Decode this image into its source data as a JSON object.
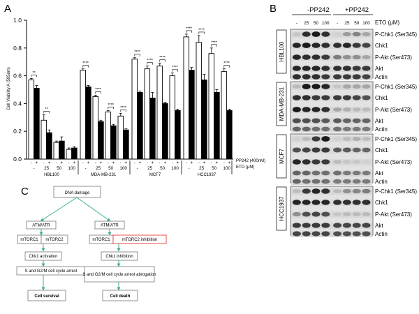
{
  "panel_a": {
    "letter": "A",
    "chart_data": {
      "type": "bar",
      "ylabel": "Cell Viability A (595nm)",
      "ylim": [
        0,
        1.0
      ],
      "yticks": [
        "0.0",
        "0.2",
        "0.4",
        "0.6",
        "0.8",
        "1.0"
      ],
      "groups": [
        {
          "name": "HBL100",
          "eto": [
            "",
            "25",
            "50",
            "100"
          ],
          "minus_pp": [
            0.57,
            0.28,
            0.12,
            0.07
          ],
          "plus_pp": [
            0.51,
            0.19,
            0.13,
            0.08
          ],
          "err_minus": [
            0.01,
            0.04,
            0.01,
            0.01
          ],
          "err_plus": [
            0.02,
            0.02,
            0.03,
            0.01
          ],
          "sig": [
            "**",
            "**",
            "",
            ""
          ]
        },
        {
          "name": "MDA-MB-231",
          "eto": [
            "",
            "25",
            "50",
            "100"
          ],
          "minus_pp": [
            0.64,
            0.45,
            0.34,
            0.31
          ],
          "plus_pp": [
            0.52,
            0.27,
            0.24,
            0.21
          ],
          "err_minus": [
            0.01,
            0.01,
            0.01,
            0.02
          ],
          "err_plus": [
            0.01,
            0.01,
            0.01,
            0.01
          ],
          "sig": [
            "****",
            "****",
            "****",
            "****"
          ]
        },
        {
          "name": "MCF7",
          "eto": [
            "",
            "25",
            "50",
            "100"
          ],
          "minus_pp": [
            0.72,
            0.65,
            0.67,
            0.6
          ],
          "plus_pp": [
            0.48,
            0.44,
            0.4,
            0.35
          ],
          "err_minus": [
            0.01,
            0.02,
            0.02,
            0.02
          ],
          "err_plus": [
            0.01,
            0.04,
            0.01,
            0.01
          ],
          "sig": [
            "****",
            "****",
            "****",
            "****"
          ]
        },
        {
          "name": "HCC1937",
          "eto": [
            "",
            "25",
            "50",
            "100"
          ],
          "minus_pp": [
            0.88,
            0.84,
            0.76,
            0.63
          ],
          "plus_pp": [
            0.64,
            0.57,
            0.48,
            0.35
          ],
          "err_minus": [
            0.02,
            0.05,
            0.04,
            0.02
          ],
          "err_plus": [
            0.02,
            0.04,
            0.02,
            0.01
          ],
          "sig": [
            "****",
            "****",
            "****",
            "****"
          ]
        }
      ],
      "series_colors": {
        "minus_pp": "#ffffff",
        "plus_pp": "#000000"
      },
      "pp_signs": [
        "-",
        "+"
      ],
      "pp_label": "PP242 (400nM)",
      "eto_label": "ETO (μM)"
    }
  },
  "panel_b": {
    "letter": "B",
    "minus_header": "-PP242",
    "plus_header": "+PP242",
    "eto_label": "ETO (μM)",
    "doses": [
      "-",
      "25",
      "50",
      "100",
      "-",
      "25",
      "50",
      "100"
    ],
    "blocks": [
      {
        "cell": "HBL100",
        "labels": [
          "P-Chk1 (Ser345)",
          "Chk1",
          "P-Akt (Ser473)",
          "Akt",
          "Actin"
        ]
      },
      {
        "cell": "MDA-MB-231",
        "labels": [
          "P-Chk1 (Ser345)",
          "Chk1",
          "P-Akt (Ser473)",
          "Akt",
          "Actin"
        ]
      },
      {
        "cell": "MCF7",
        "labels": [
          "P-Chk1 (Ser345)",
          "Chk1",
          "P-Akt (Ser473)",
          "Akt",
          "Actin"
        ]
      },
      {
        "cell": "HCC1937",
        "labels": [
          "P-Chk1 (Ser345)",
          "Chk1",
          "P-Akt (Ser473)",
          "Akt",
          "Actin"
        ]
      }
    ]
  },
  "panel_c": {
    "letter": "C",
    "top": "DNA damage",
    "left": {
      "kinase": "ATM/ATR",
      "m1": "mTORC1",
      "m2": "mTORC2",
      "chk": "Chk1 activation",
      "arrest": "S and G2/M cell cycle arrest",
      "outcome": "Cell survival"
    },
    "right": {
      "kinase": "ATM/ATR",
      "m1": "mTORC1",
      "m2": "mTORC2 inhibition",
      "chk": "Chk1 inhibition",
      "arrest": "S and G2/M cell cycle arrest abrogation",
      "outcome": "Cell death"
    },
    "colors": {
      "arrow": "#3cb38a",
      "inhibit": "#e8231f"
    }
  }
}
